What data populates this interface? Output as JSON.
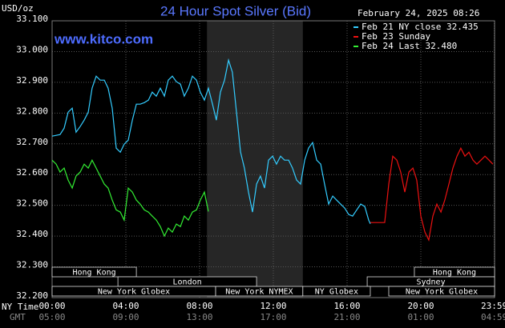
{
  "chart_data": {
    "type": "line",
    "title": "24 Hour Spot Silver (Bid)",
    "timestamp": "February 24, 2025 08:26",
    "unit_label": "USD/oz",
    "website": "www.kitco.com",
    "x_row_labels": [
      "NY Time",
      "GMT"
    ],
    "xlim": [
      0,
      24
    ],
    "ylim": [
      32.2,
      33.1
    ],
    "xticks": [
      {
        "value": 0,
        "label": "00:00"
      },
      {
        "value": 4,
        "label": "04:00"
      },
      {
        "value": 8,
        "label": "08:00"
      },
      {
        "value": 12,
        "label": "12:00"
      },
      {
        "value": 16,
        "label": "16:00"
      },
      {
        "value": 20,
        "label": "20:00"
      },
      {
        "value": 23.98,
        "label": "23:59"
      }
    ],
    "gmt_labels": [
      "05:00",
      "09:00",
      "13:00",
      "17:00",
      "21:00",
      "01:00",
      "04:59"
    ],
    "yticks": [
      {
        "value": 32.2,
        "label": "32.200"
      },
      {
        "value": 32.3,
        "label": "32.300"
      },
      {
        "value": 32.4,
        "label": "32.400"
      },
      {
        "value": 32.5,
        "label": "32.500"
      },
      {
        "value": 32.6,
        "label": "32.600"
      },
      {
        "value": 32.7,
        "label": "32.700"
      },
      {
        "value": 32.8,
        "label": "32.800"
      },
      {
        "value": 32.9,
        "label": "32.900"
      },
      {
        "value": 33.0,
        "label": "33.000"
      },
      {
        "value": 33.1,
        "label": "33.100"
      }
    ],
    "grid": true,
    "highlight_range": [
      8.4,
      13.6
    ],
    "series": [
      {
        "name": "Feb 21 NY close 32.435",
        "color": "#33ccff",
        "x": [
          0,
          0.43,
          0.65,
          0.87,
          1.09,
          1.3,
          1.52,
          1.74,
          1.96,
          2.17,
          2.39,
          2.61,
          2.83,
          3.04,
          3.26,
          3.48,
          3.7,
          3.91,
          4.13,
          4.35,
          4.57,
          4.78,
          5.0,
          5.22,
          5.43,
          5.65,
          5.87,
          6.09,
          6.3,
          6.52,
          6.74,
          6.96,
          7.17,
          7.39,
          7.61,
          7.83,
          8.04,
          8.26,
          8.48,
          8.7,
          8.91,
          9.13,
          9.35,
          9.57,
          9.78,
          10.0,
          10.22,
          10.43,
          10.65,
          10.87,
          11.09,
          11.3,
          11.52,
          11.74,
          11.96,
          12.17,
          12.39,
          12.61,
          12.83,
          13.04,
          13.26,
          13.48,
          13.7,
          13.91,
          14.13,
          14.35,
          14.57,
          14.78,
          15.0,
          15.22,
          15.43,
          15.65,
          15.87,
          16.09,
          16.3,
          16.52,
          16.74,
          16.96,
          17.17,
          17.26
        ],
        "values": [
          32.725,
          32.73,
          32.751,
          32.803,
          32.816,
          32.738,
          32.756,
          32.777,
          32.803,
          32.881,
          32.92,
          32.907,
          32.907,
          32.881,
          32.816,
          32.686,
          32.673,
          32.699,
          32.712,
          32.777,
          32.829,
          32.829,
          32.834,
          32.842,
          32.868,
          32.855,
          32.881,
          32.855,
          32.907,
          32.92,
          32.902,
          32.894,
          32.855,
          32.881,
          32.92,
          32.907,
          32.868,
          32.842,
          32.881,
          32.829,
          32.777,
          32.868,
          32.907,
          32.972,
          32.933,
          32.803,
          32.673,
          32.621,
          32.543,
          32.478,
          32.569,
          32.595,
          32.556,
          32.647,
          32.66,
          32.634,
          32.66,
          32.647,
          32.647,
          32.621,
          32.582,
          32.569,
          32.647,
          32.686,
          32.704,
          32.647,
          32.634,
          32.569,
          32.504,
          32.53,
          32.517,
          32.504,
          32.491,
          32.47,
          32.465,
          32.485,
          32.504,
          32.496,
          32.452,
          32.44
        ]
      },
      {
        "name": "Feb 23 Sunday",
        "color": "#ee1111",
        "x": [
          17.26,
          18.04,
          18.26,
          18.48,
          18.7,
          18.91,
          19.13,
          19.35,
          19.57,
          19.78,
          20.0,
          20.22,
          20.43,
          20.65,
          20.87,
          21.09,
          21.3,
          21.52,
          21.74,
          21.96,
          22.17,
          22.39,
          22.61,
          22.83,
          23.04,
          23.26,
          23.48,
          23.7,
          23.91
        ],
        "values": [
          32.444,
          32.444,
          32.569,
          32.66,
          32.647,
          32.608,
          32.543,
          32.608,
          32.621,
          32.582,
          32.465,
          32.413,
          32.387,
          32.465,
          32.504,
          32.478,
          32.517,
          32.569,
          32.621,
          32.66,
          32.686,
          32.66,
          32.673,
          32.647,
          32.634,
          32.647,
          32.66,
          32.647,
          32.634
        ]
      },
      {
        "name": "Feb 24 Last 32.480",
        "color": "#33ee33",
        "x": [
          0,
          0.22,
          0.43,
          0.65,
          0.87,
          1.09,
          1.3,
          1.52,
          1.74,
          1.96,
          2.17,
          2.39,
          2.61,
          2.83,
          3.04,
          3.26,
          3.48,
          3.7,
          3.91,
          4.13,
          4.35,
          4.57,
          4.78,
          5.0,
          5.22,
          5.43,
          5.65,
          5.87,
          6.09,
          6.3,
          6.52,
          6.74,
          6.96,
          7.17,
          7.39,
          7.61,
          7.83,
          8.04,
          8.26,
          8.48
        ],
        "values": [
          32.647,
          32.634,
          32.608,
          32.621,
          32.582,
          32.556,
          32.595,
          32.608,
          32.634,
          32.621,
          32.647,
          32.621,
          32.595,
          32.569,
          32.556,
          32.517,
          32.485,
          32.478,
          32.452,
          32.556,
          32.543,
          32.517,
          32.504,
          32.485,
          32.478,
          32.465,
          32.452,
          32.431,
          32.4,
          32.426,
          32.413,
          32.439,
          32.431,
          32.465,
          32.452,
          32.478,
          32.485,
          32.517,
          32.543,
          32.48
        ]
      }
    ],
    "sessions": [
      [
        {
          "label": "Hong Kong",
          "start": 0,
          "end": 4.57
        },
        {
          "label": "Hong Kong",
          "start": 19.65,
          "end": 24
        }
      ],
      [
        {
          "label": "London",
          "start": 3.57,
          "end": 11.09
        },
        {
          "label": "Sydney",
          "start": 17.09,
          "end": 24
        }
      ],
      [
        {
          "label": "New York Globex",
          "start": 0,
          "end": 8.87
        },
        {
          "label": "New York NYMEX",
          "start": 8.87,
          "end": 13.6
        },
        {
          "label": "NY Globex",
          "start": 13.6,
          "end": 17.26
        },
        {
          "label": "New York Globex",
          "start": 18.26,
          "end": 24
        }
      ]
    ]
  }
}
